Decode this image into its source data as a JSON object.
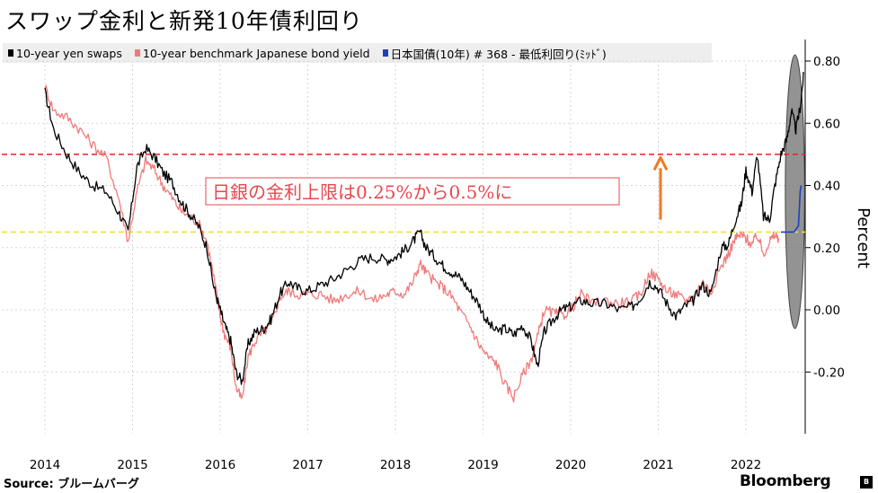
{
  "title": "スワップ金利と新発10年債利回り",
  "legend": [
    {
      "label": "10-year yen swaps",
      "color": "#000000"
    },
    {
      "label": "10-year benchmark Japanese bond yield",
      "color": "#f07a7a"
    },
    {
      "label": "日本国債(10年) # 368 - 最低利回り(ﾐｯﾄﾞ)",
      "color": "#1f3fbf"
    }
  ],
  "footer": {
    "source": "Source: ブルームバーグ",
    "brand": "Bloomberg",
    "brand_icon": "bloomberg-terminal-icon"
  },
  "chart_data": {
    "type": "line",
    "title": "スワップ金利と新発10年債利回り",
    "xlabel": "",
    "ylabel": "Percent",
    "x_tick_labels": [
      "2014",
      "2015",
      "2016",
      "2017",
      "2018",
      "2019",
      "2020",
      "2021",
      "2022"
    ],
    "y_tick_labels": [
      "0.80",
      "0.60",
      "0.40",
      "0.20",
      "0.00",
      "-0.20"
    ],
    "xlim": [
      2014.0,
      2022.7
    ],
    "ylim": [
      -0.4,
      0.87
    ],
    "grid": true,
    "legend_position": "top-left",
    "series": [
      {
        "name": "10-year yen swaps",
        "color": "#000000",
        "points": [
          [
            2014.0,
            0.7
          ],
          [
            2014.1,
            0.58
          ],
          [
            2014.25,
            0.5
          ],
          [
            2014.4,
            0.44
          ],
          [
            2014.55,
            0.4
          ],
          [
            2014.7,
            0.38
          ],
          [
            2014.85,
            0.31
          ],
          [
            2014.95,
            0.25
          ],
          [
            2015.05,
            0.46
          ],
          [
            2015.15,
            0.52
          ],
          [
            2015.25,
            0.49
          ],
          [
            2015.35,
            0.44
          ],
          [
            2015.45,
            0.41
          ],
          [
            2015.55,
            0.35
          ],
          [
            2015.65,
            0.31
          ],
          [
            2015.75,
            0.27
          ],
          [
            2015.85,
            0.2
          ],
          [
            2015.93,
            0.07
          ],
          [
            2016.0,
            0.0
          ],
          [
            2016.05,
            -0.05
          ],
          [
            2016.12,
            -0.1
          ],
          [
            2016.18,
            -0.2
          ],
          [
            2016.25,
            -0.23
          ],
          [
            2016.32,
            -0.11
          ],
          [
            2016.4,
            -0.07
          ],
          [
            2016.5,
            -0.06
          ],
          [
            2016.58,
            -0.03
          ],
          [
            2016.68,
            0.05
          ],
          [
            2016.78,
            0.09
          ],
          [
            2016.88,
            0.07
          ],
          [
            2017.0,
            0.06
          ],
          [
            2017.15,
            0.08
          ],
          [
            2017.3,
            0.1
          ],
          [
            2017.45,
            0.13
          ],
          [
            2017.6,
            0.16
          ],
          [
            2017.75,
            0.17
          ],
          [
            2017.9,
            0.16
          ],
          [
            2018.0,
            0.17
          ],
          [
            2018.1,
            0.19
          ],
          [
            2018.2,
            0.22
          ],
          [
            2018.28,
            0.25
          ],
          [
            2018.35,
            0.2
          ],
          [
            2018.45,
            0.17
          ],
          [
            2018.55,
            0.14
          ],
          [
            2018.65,
            0.12
          ],
          [
            2018.75,
            0.1
          ],
          [
            2018.85,
            0.06
          ],
          [
            2018.95,
            0.02
          ],
          [
            2019.05,
            -0.04
          ],
          [
            2019.15,
            -0.07
          ],
          [
            2019.25,
            -0.06
          ],
          [
            2019.35,
            -0.08
          ],
          [
            2019.45,
            -0.05
          ],
          [
            2019.55,
            -0.1
          ],
          [
            2019.62,
            -0.18
          ],
          [
            2019.7,
            -0.07
          ],
          [
            2019.8,
            -0.03
          ],
          [
            2019.9,
            0.0
          ],
          [
            2020.0,
            0.01
          ],
          [
            2020.12,
            0.03
          ],
          [
            2020.25,
            0.02
          ],
          [
            2020.4,
            0.02
          ],
          [
            2020.55,
            0.0
          ],
          [
            2020.7,
            0.01
          ],
          [
            2020.8,
            0.04
          ],
          [
            2020.9,
            0.09
          ],
          [
            2021.0,
            0.07
          ],
          [
            2021.1,
            0.02
          ],
          [
            2021.2,
            -0.02
          ],
          [
            2021.3,
            0.01
          ],
          [
            2021.4,
            0.03
          ],
          [
            2021.5,
            0.08
          ],
          [
            2021.6,
            0.05
          ],
          [
            2021.72,
            0.2
          ],
          [
            2021.8,
            0.21
          ],
          [
            2021.88,
            0.29
          ],
          [
            2021.95,
            0.34
          ],
          [
            2022.0,
            0.45
          ],
          [
            2022.07,
            0.38
          ],
          [
            2022.13,
            0.5
          ],
          [
            2022.2,
            0.3
          ],
          [
            2022.27,
            0.29
          ],
          [
            2022.33,
            0.4
          ],
          [
            2022.4,
            0.5
          ],
          [
            2022.47,
            0.55
          ],
          [
            2022.52,
            0.64
          ],
          [
            2022.57,
            0.58
          ],
          [
            2022.62,
            0.65
          ],
          [
            2022.66,
            0.76
          ]
        ]
      },
      {
        "name": "10-year benchmark Japanese bond yield",
        "color": "#f07a7a",
        "points": [
          [
            2014.0,
            0.72
          ],
          [
            2014.1,
            0.64
          ],
          [
            2014.25,
            0.62
          ],
          [
            2014.4,
            0.58
          ],
          [
            2014.55,
            0.53
          ],
          [
            2014.7,
            0.49
          ],
          [
            2014.85,
            0.35
          ],
          [
            2014.95,
            0.22
          ],
          [
            2015.05,
            0.38
          ],
          [
            2015.15,
            0.48
          ],
          [
            2015.25,
            0.45
          ],
          [
            2015.35,
            0.4
          ],
          [
            2015.45,
            0.36
          ],
          [
            2015.55,
            0.32
          ],
          [
            2015.65,
            0.3
          ],
          [
            2015.75,
            0.28
          ],
          [
            2015.85,
            0.22
          ],
          [
            2015.93,
            0.1
          ],
          [
            2016.0,
            -0.02
          ],
          [
            2016.05,
            -0.08
          ],
          [
            2016.12,
            -0.12
          ],
          [
            2016.18,
            -0.25
          ],
          [
            2016.25,
            -0.29
          ],
          [
            2016.32,
            -0.15
          ],
          [
            2016.4,
            -0.1
          ],
          [
            2016.5,
            -0.07
          ],
          [
            2016.58,
            -0.05
          ],
          [
            2016.68,
            0.04
          ],
          [
            2016.78,
            0.06
          ],
          [
            2016.88,
            0.05
          ],
          [
            2017.0,
            0.05
          ],
          [
            2017.15,
            0.05
          ],
          [
            2017.3,
            0.03
          ],
          [
            2017.45,
            0.05
          ],
          [
            2017.6,
            0.06
          ],
          [
            2017.75,
            0.03
          ],
          [
            2017.9,
            0.05
          ],
          [
            2018.0,
            0.06
          ],
          [
            2018.1,
            0.05
          ],
          [
            2018.2,
            0.09
          ],
          [
            2018.28,
            0.15
          ],
          [
            2018.35,
            0.12
          ],
          [
            2018.45,
            0.09
          ],
          [
            2018.55,
            0.07
          ],
          [
            2018.65,
            0.04
          ],
          [
            2018.75,
            -0.01
          ],
          [
            2018.85,
            -0.05
          ],
          [
            2018.95,
            -0.11
          ],
          [
            2019.05,
            -0.15
          ],
          [
            2019.15,
            -0.17
          ],
          [
            2019.25,
            -0.24
          ],
          [
            2019.35,
            -0.28
          ],
          [
            2019.45,
            -0.21
          ],
          [
            2019.55,
            -0.16
          ],
          [
            2019.62,
            -0.09
          ],
          [
            2019.7,
            0.0
          ],
          [
            2019.8,
            -0.01
          ],
          [
            2019.9,
            -0.02
          ],
          [
            2020.0,
            0.0
          ],
          [
            2020.12,
            0.05
          ],
          [
            2020.25,
            0.02
          ],
          [
            2020.4,
            0.03
          ],
          [
            2020.55,
            0.02
          ],
          [
            2020.7,
            0.03
          ],
          [
            2020.8,
            0.05
          ],
          [
            2020.9,
            0.12
          ],
          [
            2021.0,
            0.1
          ],
          [
            2021.1,
            0.06
          ],
          [
            2021.2,
            0.05
          ],
          [
            2021.3,
            0.03
          ],
          [
            2021.4,
            0.04
          ],
          [
            2021.5,
            0.09
          ],
          [
            2021.6,
            0.06
          ],
          [
            2021.72,
            0.14
          ],
          [
            2021.8,
            0.18
          ],
          [
            2021.88,
            0.23
          ],
          [
            2021.95,
            0.24
          ],
          [
            2022.0,
            0.23
          ],
          [
            2022.07,
            0.21
          ],
          [
            2022.13,
            0.24
          ],
          [
            2022.2,
            0.18
          ],
          [
            2022.27,
            0.22
          ],
          [
            2022.33,
            0.24
          ],
          [
            2022.38,
            0.23
          ]
        ]
      },
      {
        "name": "日本国債(10年) # 368 - 最低利回り(ﾐｯﾄﾞ)",
        "color": "#1f3fbf",
        "points": [
          [
            2022.4,
            0.25
          ],
          [
            2022.5,
            0.25
          ],
          [
            2022.55,
            0.25
          ],
          [
            2022.6,
            0.27
          ],
          [
            2022.62,
            0.38
          ],
          [
            2022.63,
            0.4
          ]
        ]
      }
    ],
    "reference_lines": [
      {
        "y": 0.5,
        "color": "#e8202a",
        "style": "dashed"
      },
      {
        "y": 0.25,
        "color": "#f0e03a",
        "style": "dashed"
      }
    ],
    "annotations": [
      {
        "text": "日銀の金利上限は0.25%から0.5%に",
        "color": "#e8474f",
        "boxed": true
      },
      {
        "type": "arrow",
        "from_y": 0.29,
        "to_y": 0.49,
        "x": 2021.0,
        "color": "#f07a1e"
      },
      {
        "type": "ellipse",
        "center": [
          2022.56,
          0.38
        ],
        "rx_years": 0.11,
        "ry": 0.44,
        "fill": "#808080"
      }
    ]
  }
}
